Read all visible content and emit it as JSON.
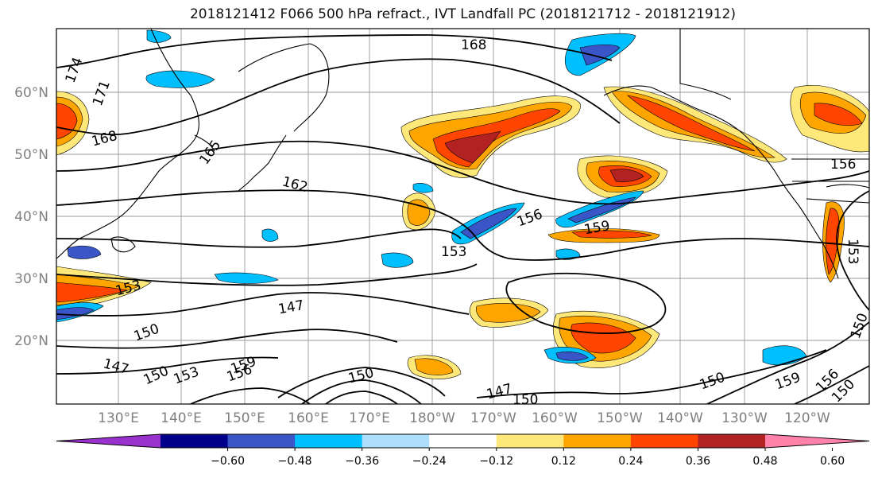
{
  "title": "2018121412 F066 500 hPa refract., IVT Landfall PC (2018121712 - 2018121912)",
  "lat_labels": [
    "60°N",
    "50°N",
    "40°N",
    "30°N",
    "20°N"
  ],
  "lon_labels": [
    "130°E",
    "140°E",
    "150°E",
    "160°E",
    "170°E",
    "180°W",
    "170°W",
    "160°W",
    "150°W",
    "140°W",
    "130°W",
    "120°W"
  ],
  "contour_labels": [
    "174",
    "171",
    "168",
    "168",
    "165",
    "162",
    "156",
    "159",
    "153",
    "153",
    "147",
    "150",
    "147",
    "150",
    "153",
    "156",
    "159",
    "150",
    "147",
    "150",
    "150",
    "159",
    "156",
    "150",
    "153",
    "156",
    "150"
  ],
  "colorbar": {
    "tick_labels": [
      "−0.60",
      "−0.48",
      "−0.36",
      "−0.24",
      "−0.12",
      "0.12",
      "0.24",
      "0.36",
      "0.48",
      "0.60"
    ],
    "colors": [
      "#9932CC",
      "#00008B",
      "#3A55C8",
      "#00BFFF",
      "#ADDEFA",
      "#FFFFFF",
      "#FFE87A",
      "#FFA500",
      "#FF4500",
      "#B22222",
      "#FF82AB"
    ]
  }
}
